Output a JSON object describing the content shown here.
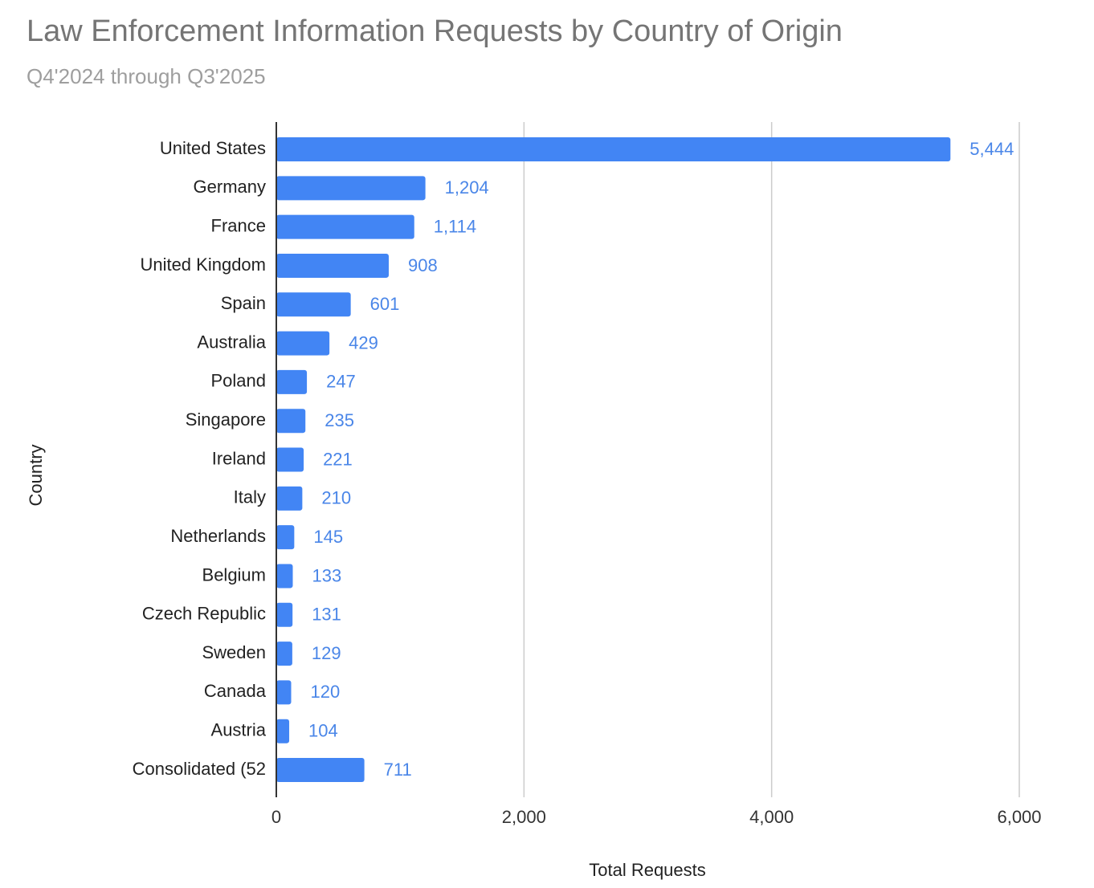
{
  "chart_data": {
    "type": "bar",
    "title": "Law Enforcement Information Requests by Country of Origin",
    "subtitle": "Q4'2024 through Q3'2025",
    "x_label": "Total Requests",
    "y_label": "Country",
    "categories": [
      "United States",
      "Germany",
      "France",
      "United Kingdom",
      "Spain",
      "Australia",
      "Poland",
      "Singapore",
      "Ireland",
      "Italy",
      "Netherlands",
      "Belgium",
      "Czech Republic",
      "Sweden",
      "Canada",
      "Austria",
      "Consolidated (52"
    ],
    "values": [
      5444,
      1204,
      1114,
      908,
      601,
      429,
      247,
      235,
      221,
      210,
      145,
      133,
      131,
      129,
      120,
      104,
      711
    ],
    "value_labels": [
      "5,444",
      "1,204",
      "1,114",
      "908",
      "601",
      "429",
      "247",
      "235",
      "221",
      "210",
      "145",
      "133",
      "131",
      "129",
      "120",
      "104",
      "711"
    ],
    "color": "#4285f4",
    "xlim": [
      0,
      6000
    ],
    "xticks": [
      0,
      {
        "value": 2000,
        "label": "2,000"
      },
      {
        "value": 4000,
        "label": "4,000"
      },
      {
        "value": 6000,
        "label": "6,000"
      }
    ],
    "grid": true
  }
}
